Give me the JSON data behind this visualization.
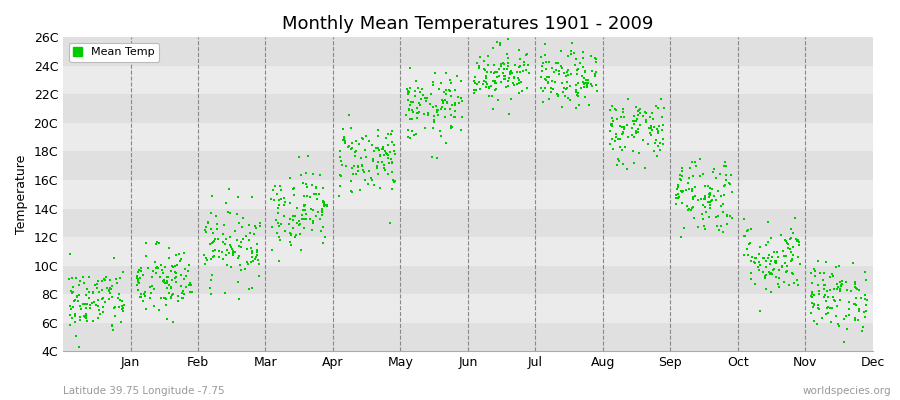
{
  "title": "Monthly Mean Temperatures 1901 - 2009",
  "ylabel": "Temperature",
  "xlabel_labels": [
    "Jan",
    "Feb",
    "Mar",
    "Apr",
    "May",
    "Jun",
    "Jul",
    "Aug",
    "Sep",
    "Oct",
    "Nov",
    "Dec"
  ],
  "ytick_labels": [
    "4C",
    "6C",
    "8C",
    "10C",
    "12C",
    "14C",
    "16C",
    "18C",
    "20C",
    "22C",
    "24C",
    "26C"
  ],
  "ytick_values": [
    4,
    6,
    8,
    10,
    12,
    14,
    16,
    18,
    20,
    22,
    24,
    26
  ],
  "ylim": [
    4,
    26
  ],
  "dot_color": "#00CC00",
  "dot_size": 4,
  "background_color": "#ebebeb",
  "band_color_alt": "#e0e0e0",
  "title_fontsize": 13,
  "axis_label_fontsize": 9,
  "tick_fontsize": 9,
  "legend_label": "Mean Temp",
  "subtitle_left": "Latitude 39.75 Longitude -7.75",
  "subtitle_right": "worldspecies.org",
  "num_years": 109,
  "monthly_means": [
    7.5,
    8.8,
    11.5,
    14.0,
    17.5,
    21.0,
    23.5,
    23.0,
    19.5,
    15.0,
    10.5,
    7.8
  ],
  "monthly_stds": [
    1.2,
    1.3,
    1.4,
    1.4,
    1.3,
    1.2,
    1.0,
    1.0,
    1.2,
    1.4,
    1.3,
    1.2
  ],
  "seed": 42
}
